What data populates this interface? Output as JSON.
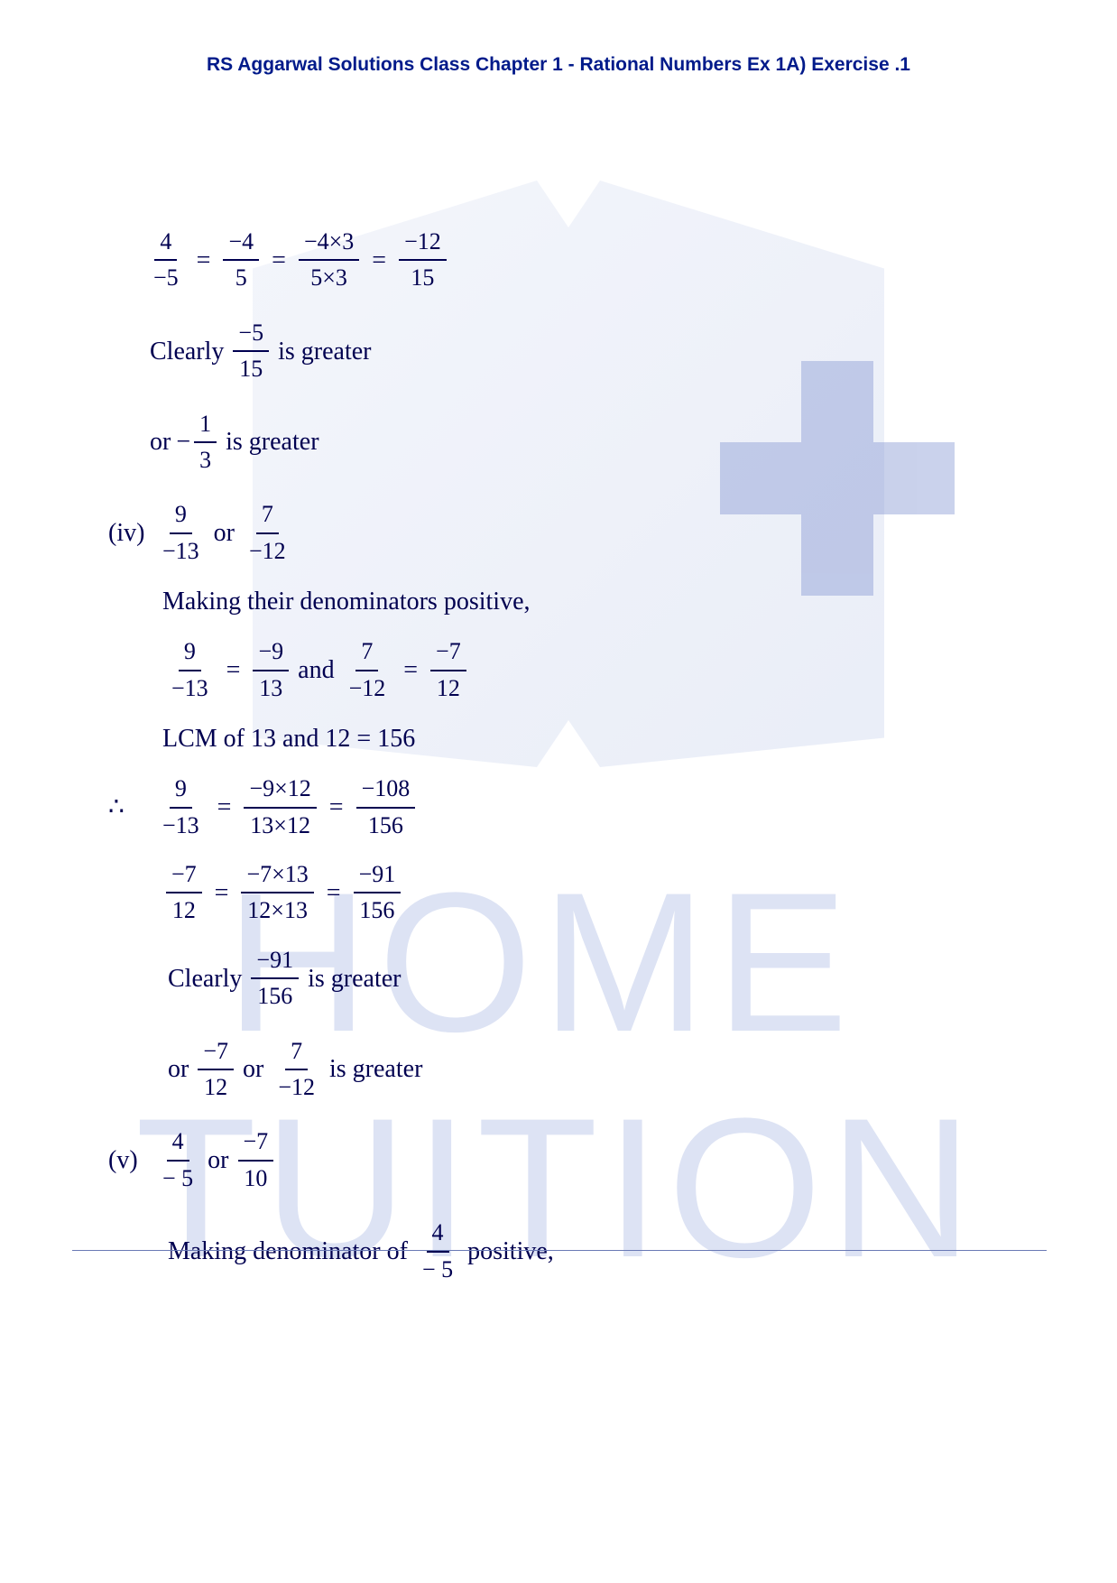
{
  "header": {
    "title": "RS Aggarwal Solutions Class Chapter 1 - Rational Numbers Ex 1A) Exercise .1",
    "color": "#001a8a",
    "font_size": 21
  },
  "watermarks": {
    "home": "HOME",
    "tuition": "TUITION",
    "text_color": "#dde3f4",
    "shape_color": "#8a9bd4"
  },
  "math": {
    "text_color": "#000050",
    "font_size": 28,
    "eq1": {
      "f1": {
        "n": "4",
        "d": "−5"
      },
      "f2": {
        "n": "−4",
        "d": "5"
      },
      "f3": {
        "n": "−4×3",
        "d": "5×3"
      },
      "f4": {
        "n": "−12",
        "d": "15"
      }
    },
    "clearly1": {
      "pre": "Clearly",
      "f": {
        "n": "−5",
        "d": "15"
      },
      "post": "is greater"
    },
    "or1": {
      "pre": "or",
      "neg": "−",
      "f": {
        "n": "1",
        "d": "3"
      },
      "post": "is greater"
    },
    "part_iv": {
      "label": "(iv)",
      "f1": {
        "n": "9",
        "d": "−13"
      },
      "or": "or",
      "f2": {
        "n": "7",
        "d": "−12"
      }
    },
    "making1": "Making their denominators positive,",
    "eq2": {
      "f1": {
        "n": "9",
        "d": "−13"
      },
      "f2": {
        "n": "−9",
        "d": "13"
      },
      "and": "and",
      "f3": {
        "n": "7",
        "d": "−12"
      },
      "f4": {
        "n": "−7",
        "d": "12"
      }
    },
    "lcm": "LCM of 13 and 12 = 156",
    "therefore": "∴",
    "eq3": {
      "f1": {
        "n": "9",
        "d": "−13"
      },
      "f2": {
        "n": "−9×12",
        "d": "13×12"
      },
      "f3": {
        "n": "−108",
        "d": "156"
      }
    },
    "eq4": {
      "f1": {
        "n": "−7",
        "d": "12"
      },
      "f2": {
        "n": "−7×13",
        "d": "12×13"
      },
      "f3": {
        "n": "−91",
        "d": "156"
      }
    },
    "clearly2": {
      "pre": "Clearly",
      "f": {
        "n": "−91",
        "d": "156"
      },
      "post": "is greater"
    },
    "or2": {
      "pre": "or",
      "f1": {
        "n": "−7",
        "d": "12"
      },
      "or": "or",
      "f2": {
        "n": "7",
        "d": "−12"
      },
      "post": "is greater"
    },
    "part_v": {
      "label": "(v)",
      "f1": {
        "n": "4",
        "d": "− 5"
      },
      "or": "or",
      "f2": {
        "n": "−7",
        "d": "10"
      }
    },
    "making2": {
      "pre": "Making denominator of",
      "f": {
        "n": "4",
        "d": "− 5"
      },
      "post": "positive,"
    }
  }
}
